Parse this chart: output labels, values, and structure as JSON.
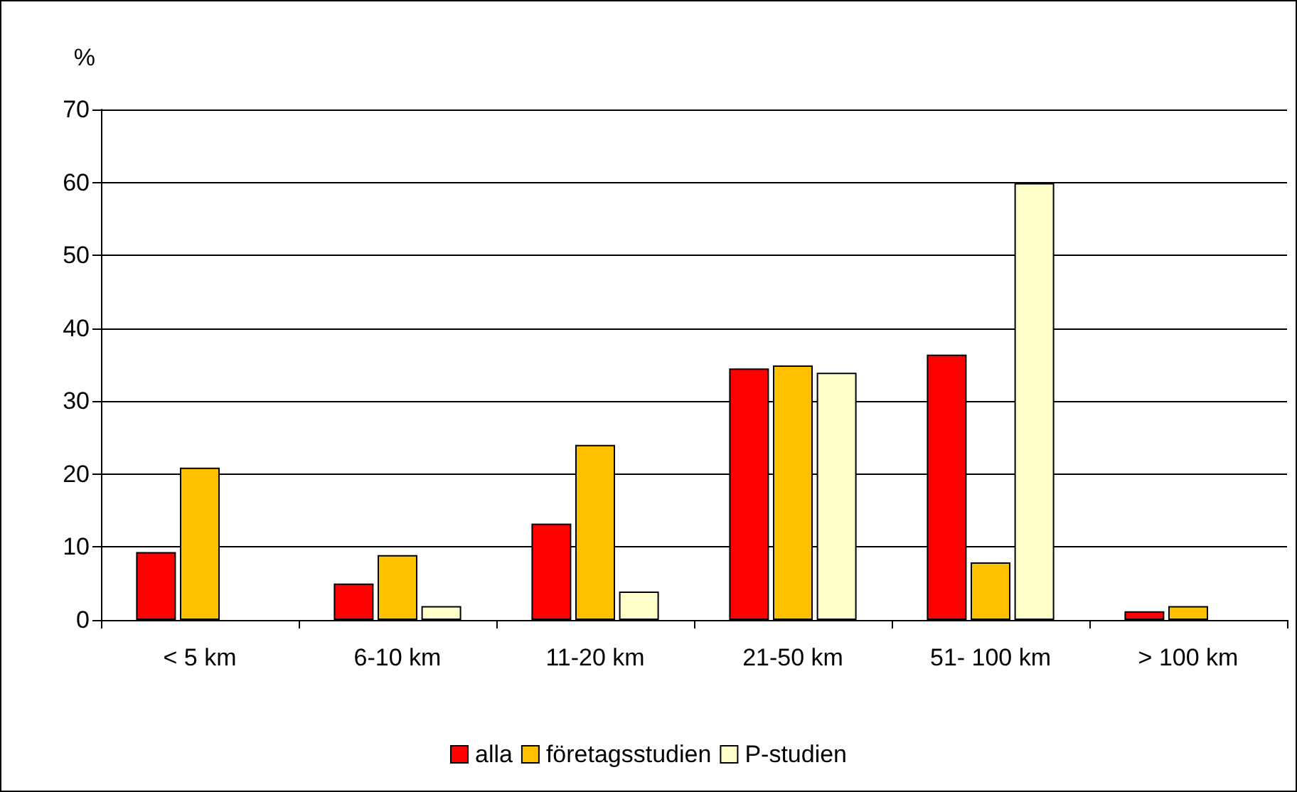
{
  "chart_data": {
    "type": "bar",
    "ylabel": "%",
    "categories": [
      "< 5 km",
      "6-10 km",
      "11-20 km",
      "21-50 km",
      "51- 100 km",
      "> 100 km"
    ],
    "series": [
      {
        "name": "alla",
        "color": "#ff0000",
        "values": [
          9.3,
          5,
          13.2,
          34.5,
          36.4,
          1.2
        ]
      },
      {
        "name": "företagsstudien",
        "color": "#ffc000",
        "values": [
          20.9,
          8.9,
          24,
          34.9,
          7.9,
          1.9
        ]
      },
      {
        "name": "P-studien",
        "color": "#ffffcc",
        "values": [
          null,
          1.9,
          3.9,
          33.9,
          59.9,
          null
        ]
      }
    ],
    "ylim": [
      0,
      70
    ],
    "yticks": [
      0,
      10,
      20,
      30,
      40,
      50,
      60,
      70
    ],
    "grid": "y",
    "legend": "bottom"
  }
}
